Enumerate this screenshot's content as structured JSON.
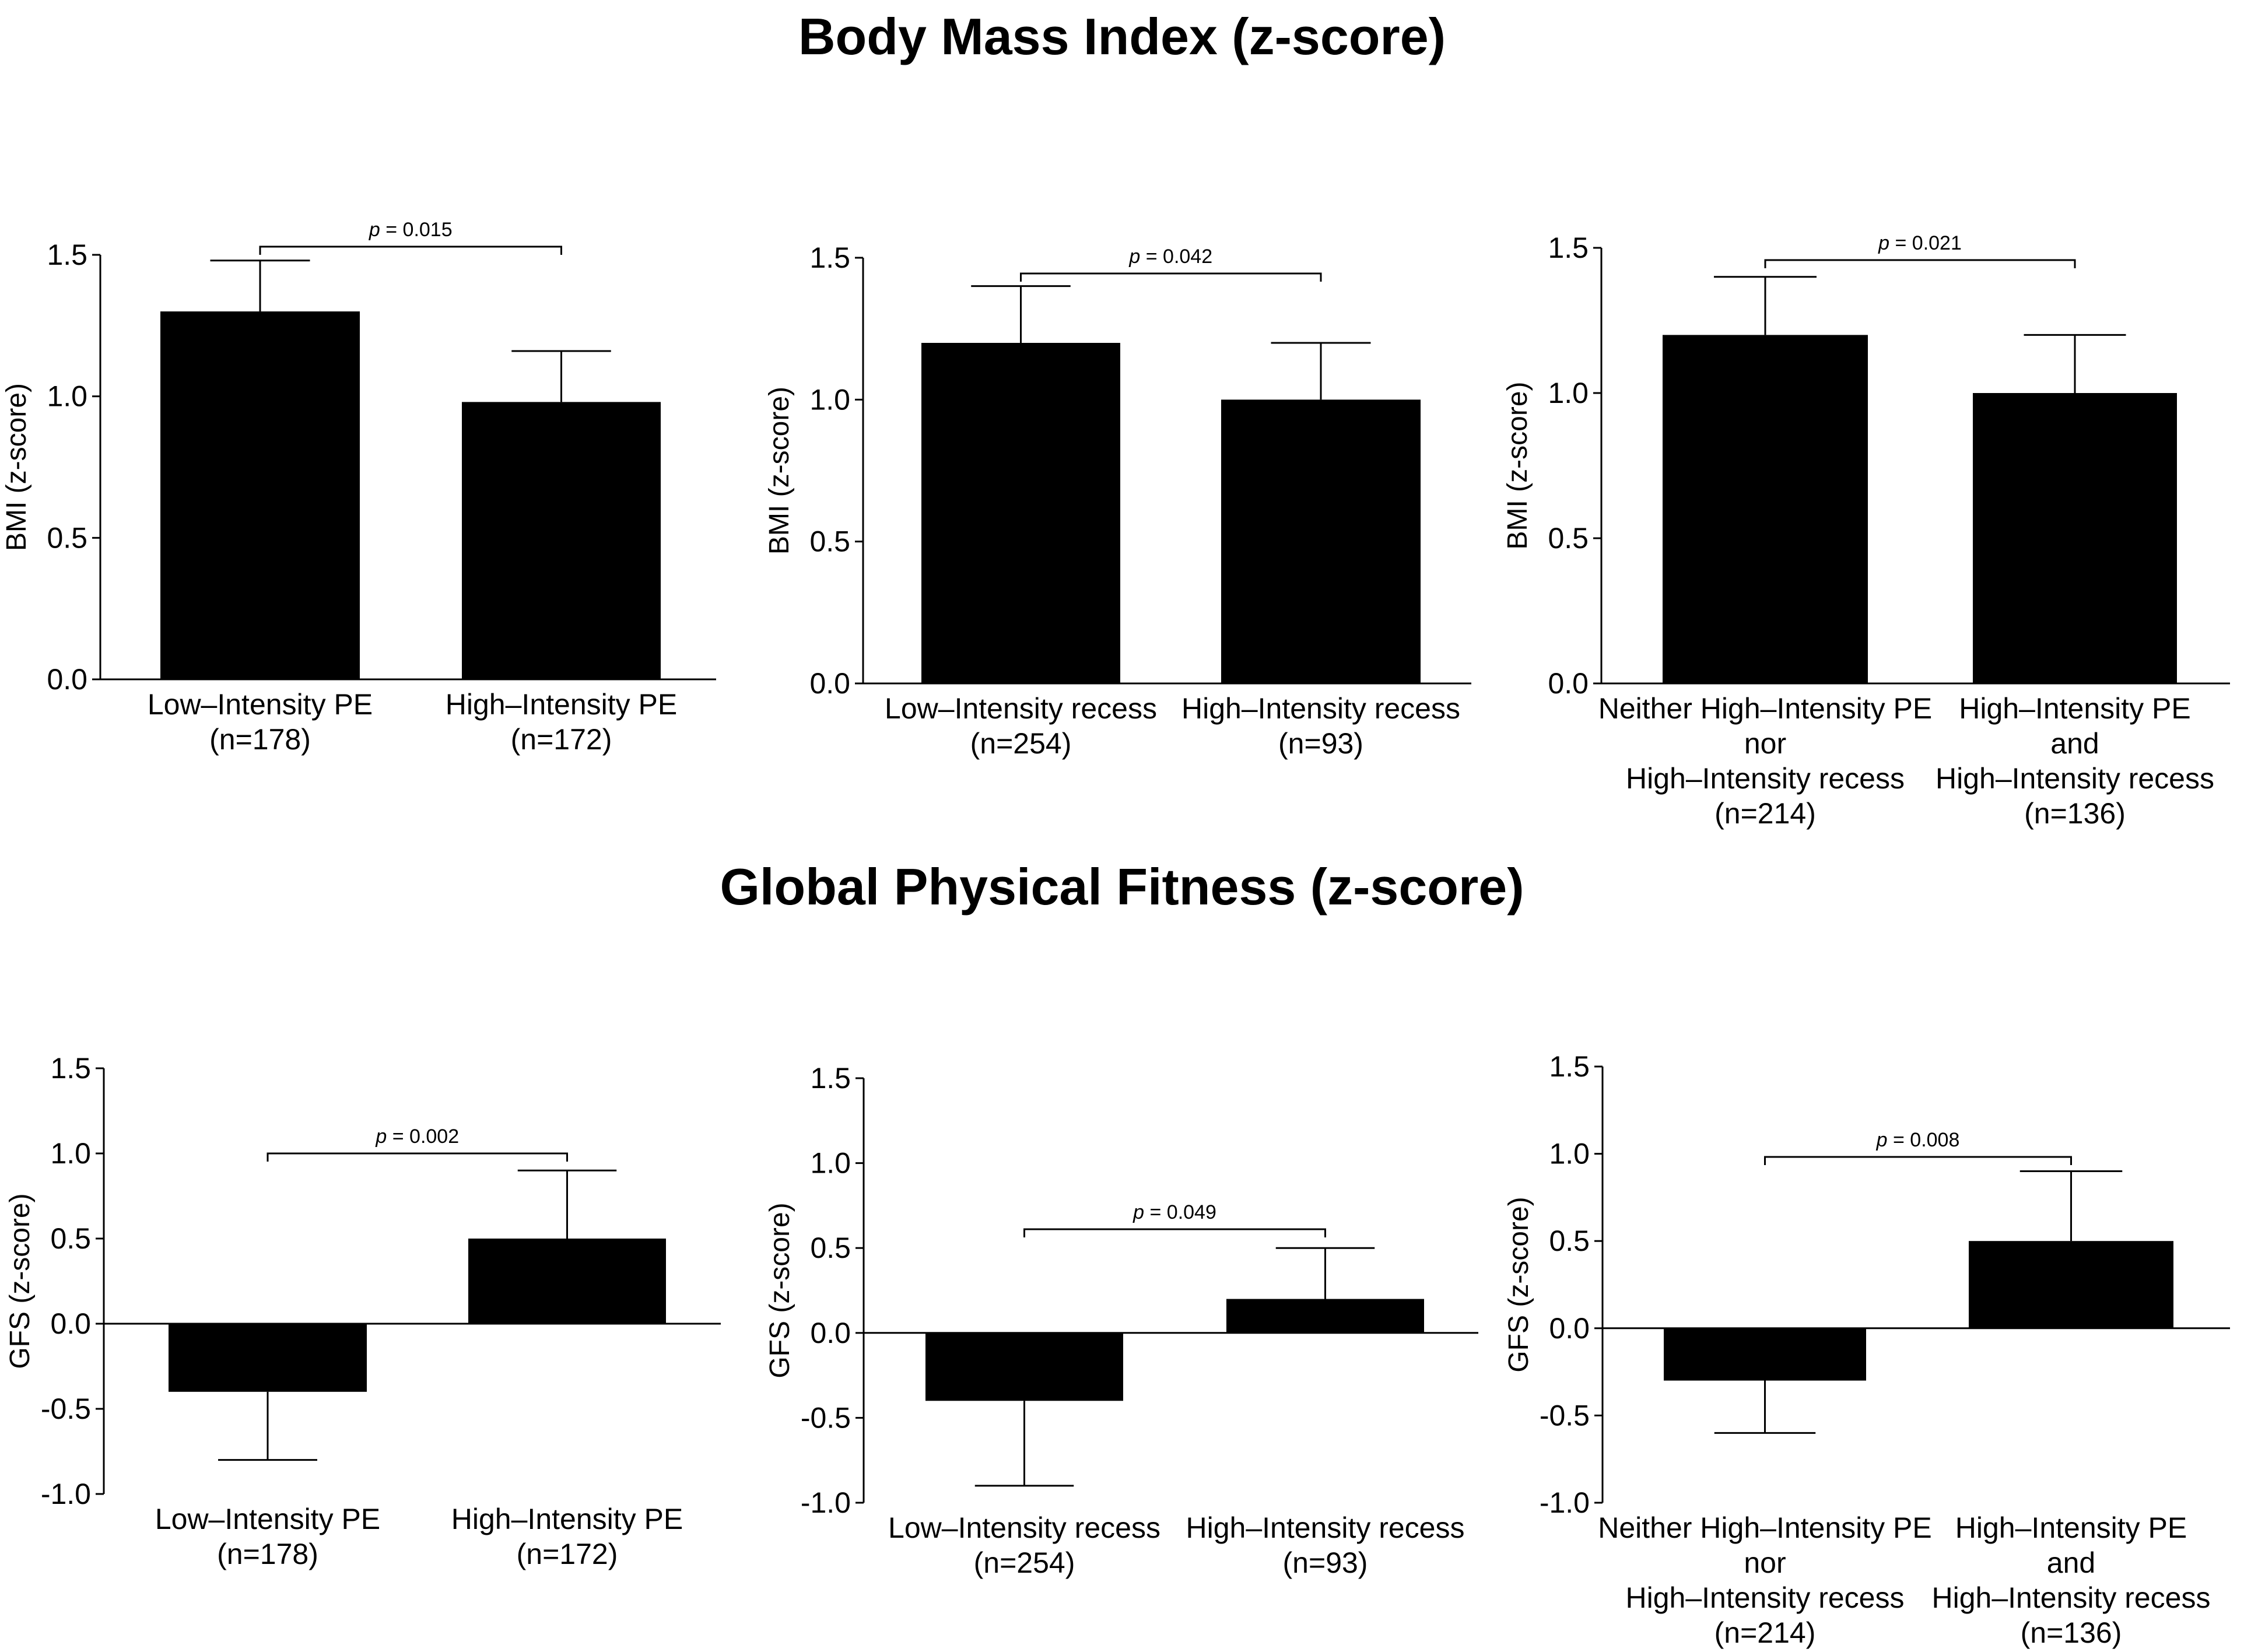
{
  "titles": {
    "bmi": "Body Mass Index (z-score)",
    "gfs": "Global Physical Fitness (z-score)"
  },
  "colors": {
    "bar": "#000000",
    "axis": "#000000",
    "background": "#ffffff"
  },
  "chart_data": [
    {
      "type": "bar",
      "id": "bmi-pe",
      "ylabel": "BMI (z-score)",
      "ylim": [
        0,
        1.5
      ],
      "yticks": [
        "0.0",
        "0.5",
        "1.0",
        "1.5"
      ],
      "categories": [
        [
          "Low–Intensity PE",
          "(n=178)"
        ],
        [
          "High–Intensity PE",
          "(n=172)"
        ]
      ],
      "values": [
        1.3,
        0.98
      ],
      "error_upper": [
        1.48,
        1.16
      ],
      "comparison": {
        "label": "p",
        "text": " = 0.015"
      }
    },
    {
      "type": "bar",
      "id": "bmi-recess",
      "ylabel": "BMI (z-score)",
      "ylim": [
        0,
        1.5
      ],
      "yticks": [
        "0.0",
        "0.5",
        "1.0",
        "1.5"
      ],
      "categories": [
        [
          "Low–Intensity recess",
          "(n=254)"
        ],
        [
          "High–Intensity recess",
          "(n=93)"
        ]
      ],
      "values": [
        1.2,
        1.0
      ],
      "error_upper": [
        1.4,
        1.2
      ],
      "comparison": {
        "label": "p",
        "text": " = 0.042"
      }
    },
    {
      "type": "bar",
      "id": "bmi-combined",
      "ylabel": "BMI (z-score)",
      "ylim": [
        0,
        1.5
      ],
      "yticks": [
        "0.0",
        "0.5",
        "1.0",
        "1.5"
      ],
      "categories": [
        [
          "Neither High–Intensity PE",
          "nor",
          "High–Intensity recess",
          "(n=214)"
        ],
        [
          "High–Intensity PE",
          "and",
          "High–Intensity recess",
          "(n=136)"
        ]
      ],
      "values": [
        1.2,
        1.0
      ],
      "error_upper": [
        1.4,
        1.2
      ],
      "comparison": {
        "label": "p",
        "text": " = 0.021"
      }
    },
    {
      "type": "bar",
      "id": "gfs-pe",
      "ylabel": "GFS (z-score)",
      "ylim": [
        -1.0,
        1.5
      ],
      "yticks": [
        "-1.0",
        "-0.5",
        "0.0",
        "0.5",
        "1.0",
        "1.5"
      ],
      "categories": [
        [
          "Low–Intensity PE",
          "(n=178)"
        ],
        [
          "High–Intensity PE",
          "(n=172)"
        ]
      ],
      "values": [
        -0.4,
        0.5
      ],
      "error_upper": [
        -0.8,
        0.9
      ],
      "comparison": {
        "label": "p",
        "text": " = 0.002"
      }
    },
    {
      "type": "bar",
      "id": "gfs-recess",
      "ylabel": "GFS (z-score)",
      "ylim": [
        -1.0,
        1.5
      ],
      "yticks": [
        "-1.0",
        "-0.5",
        "0.0",
        "0.5",
        "1.0",
        "1.5"
      ],
      "categories": [
        [
          "Low–Intensity recess",
          "(n=254)"
        ],
        [
          "High–Intensity recess",
          "(n=93)"
        ]
      ],
      "values": [
        -0.4,
        0.2
      ],
      "error_upper": [
        -0.9,
        0.5
      ],
      "comparison": {
        "label": "p",
        "text": " = 0.049"
      }
    },
    {
      "type": "bar",
      "id": "gfs-combined",
      "ylabel": "GFS (z-score)",
      "ylim": [
        -1.0,
        1.5
      ],
      "yticks": [
        "-1.0",
        "-0.5",
        "0.0",
        "0.5",
        "1.0",
        "1.5"
      ],
      "categories": [
        [
          "Neither High–Intensity PE",
          "nor",
          "High–Intensity recess",
          "(n=214)"
        ],
        [
          "High–Intensity PE",
          "and",
          "High–Intensity recess",
          "(n=136)"
        ]
      ],
      "values": [
        -0.3,
        0.5
      ],
      "error_upper": [
        -0.6,
        0.9
      ],
      "comparison": {
        "label": "p",
        "text": " = 0.008"
      }
    }
  ]
}
